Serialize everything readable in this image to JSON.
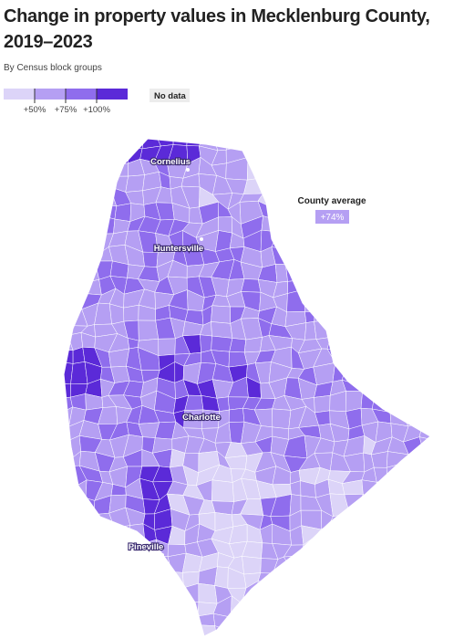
{
  "header": {
    "title_lines": [
      "Change in property values in Mecklenburg County,",
      "2019–2023"
    ],
    "subtitle": "By Census block groups"
  },
  "legend": {
    "labels": [
      "+50%",
      "+75%",
      "+100%"
    ],
    "no_data": "No data"
  },
  "annotation": {
    "label": "County average",
    "value": "+74%"
  },
  "places": [
    "Cornelius",
    "Huntersville",
    "Charlotte",
    "Pineville"
  ]
}
